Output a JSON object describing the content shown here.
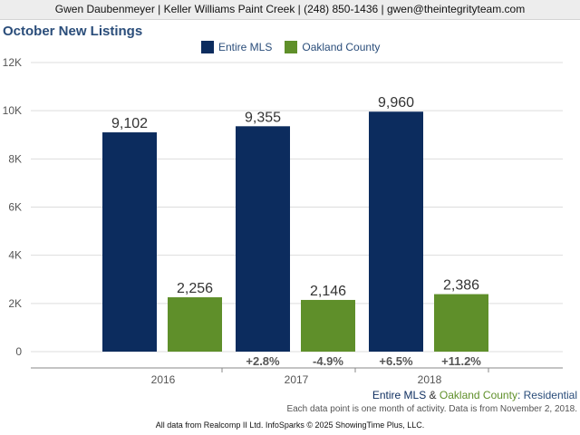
{
  "header": {
    "contact_line": "Gwen Daubenmeyer | Keller Williams Paint Creek | (248) 850-1436 | gwen@theintegrityteam.com"
  },
  "footer": {
    "series_label_1": "Entire MLS",
    "amp": " & ",
    "series_label_2": "Oakland County",
    "colon_suffix": ": Residential",
    "note": "Each data point is one month of activity. Data is from November 2, 2018.",
    "credit": "All data from Realcomp II Ltd. InfoSparks © 2025 ShowingTime Plus, LLC."
  },
  "colors": {
    "entire_mls": "#0c2c5e",
    "oakland_county": "#5f8f2a",
    "title": "#2a4d7a"
  },
  "chart_data": {
    "type": "bar",
    "title": "October New Listings",
    "categories": [
      "2016",
      "2017",
      "2018"
    ],
    "series": [
      {
        "name": "Entire MLS",
        "values": [
          9102,
          9355,
          9960
        ],
        "value_labels": [
          "9,102",
          "9,355",
          "9,960"
        ],
        "change_labels": [
          "",
          "+2.8%",
          "+6.5%"
        ]
      },
      {
        "name": "Oakland County",
        "values": [
          2256,
          2146,
          2386
        ],
        "value_labels": [
          "2,256",
          "2,146",
          "2,386"
        ],
        "change_labels": [
          "",
          "-4.9%",
          "+11.2%"
        ]
      }
    ],
    "ylim": [
      0,
      12000
    ],
    "yticks": [
      0,
      2000,
      4000,
      6000,
      8000,
      10000,
      12000
    ],
    "ytick_labels": [
      "0",
      "2K",
      "4K",
      "6K",
      "8K",
      "10K",
      "12K"
    ],
    "grid": true,
    "legend_position": "top-center"
  }
}
